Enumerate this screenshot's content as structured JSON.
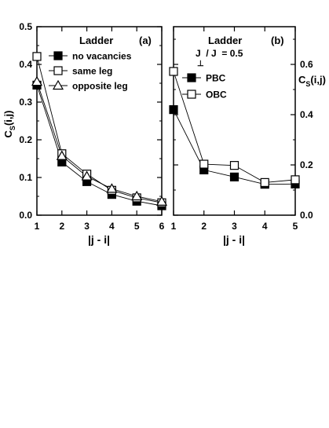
{
  "chart_data": [
    {
      "type": "line",
      "panel_tag": "(a)",
      "title": "Ladder",
      "xlabel": "|j - i|",
      "ylabel": "C",
      "ylabel_sub": "S",
      "ylabel_suffix": "(i,j)",
      "x": [
        1,
        2,
        3,
        4,
        5,
        6
      ],
      "xlim": [
        1,
        6
      ],
      "ylim": [
        0,
        0.5
      ],
      "xticks": [
        "1",
        "2",
        "3",
        "4",
        "5",
        "6"
      ],
      "yticks": [
        "0.0",
        "0.1",
        "0.2",
        "0.3",
        "0.4",
        "0.5"
      ],
      "legend_position": "top-right",
      "series": [
        {
          "name": "no vacancies",
          "marker": "filled-square",
          "values": [
            0.345,
            0.141,
            0.089,
            0.055,
            0.037,
            0.025
          ]
        },
        {
          "name": "same leg",
          "marker": "open-square",
          "values": [
            0.421,
            0.163,
            0.109,
            0.066,
            0.046,
            0.033
          ]
        },
        {
          "name": "opposite leg",
          "marker": "open-triangle",
          "values": [
            0.354,
            0.157,
            0.103,
            0.07,
            0.05,
            0.036
          ]
        }
      ]
    },
    {
      "type": "line",
      "panel_tag": "(b)",
      "title": "Ladder",
      "param_label": "J  / J  = 0.5",
      "param_sub": "⊥",
      "xlabel": "|j - i|",
      "ylabel": "C",
      "ylabel_sub": "S",
      "ylabel_suffix": "(i,j)",
      "y_axis_side": "right",
      "x": [
        1,
        2,
        3,
        4,
        5
      ],
      "xlim": [
        1,
        5
      ],
      "ylim": [
        0,
        0.75
      ],
      "xticks": [
        "1",
        "2",
        "3",
        "4",
        "5"
      ],
      "yticks": [
        "0.0",
        "0.2",
        "0.4",
        "0.6"
      ],
      "legend_position": "top-right",
      "series": [
        {
          "name": "PBC",
          "marker": "filled-square",
          "values": [
            0.42,
            0.18,
            0.152,
            0.123,
            0.124
          ]
        },
        {
          "name": "OBC",
          "marker": "open-square",
          "values": [
            0.572,
            0.203,
            0.198,
            0.13,
            0.141
          ]
        }
      ]
    }
  ]
}
